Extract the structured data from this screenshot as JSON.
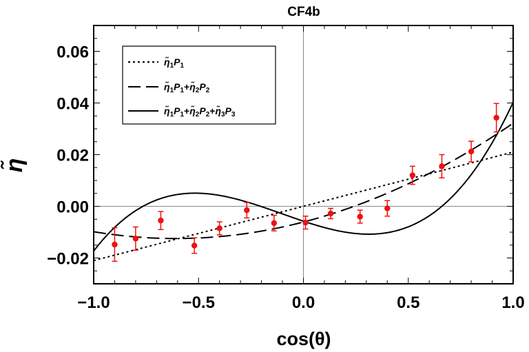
{
  "chart_data": {
    "type": "scatter",
    "title": "CF4b",
    "xlabel": "cos(θ)",
    "ylabel": "η̃",
    "xlim": [
      -1.0,
      1.0
    ],
    "ylim": [
      -0.03,
      0.07
    ],
    "xticks": [
      -1.0,
      -0.5,
      0.0,
      0.5,
      1.0
    ],
    "xtick_labels": [
      "−1.0",
      "−0.5",
      "0.0",
      "0.5",
      "1.0"
    ],
    "yticks": [
      -0.02,
      0.0,
      0.02,
      0.04,
      0.06
    ],
    "ytick_labels": [
      "−0.02",
      "0.00",
      "0.02",
      "0.04",
      "0.06"
    ],
    "points": {
      "name": "data",
      "color": "#ee1111",
      "x": [
        -0.9,
        -0.8,
        -0.68,
        -0.52,
        -0.4,
        -0.27,
        -0.14,
        0.01,
        0.13,
        0.27,
        0.4,
        0.52,
        0.66,
        0.8,
        0.92
      ],
      "y": [
        -0.0148,
        -0.0125,
        -0.0055,
        -0.0152,
        -0.0085,
        -0.0015,
        -0.0065,
        -0.0063,
        -0.0028,
        -0.004,
        -0.0008,
        0.012,
        0.0155,
        0.0212,
        0.0343
      ],
      "err": [
        0.0065,
        0.0045,
        0.0035,
        0.003,
        0.0025,
        0.003,
        0.003,
        0.0025,
        0.002,
        0.0025,
        0.003,
        0.0035,
        0.0045,
        0.004,
        0.0055
      ]
    },
    "series": [
      {
        "name": "η̃₁P₁",
        "style": "dotted",
        "coeffs": [
          0.0,
          0.021,
          0.0,
          0.0
        ]
      },
      {
        "name": "η̃₁P₁+η̃₂P₂",
        "style": "dashed",
        "coeffs": [
          -0.00033,
          0.021,
          0.0115,
          0.0
        ]
      },
      {
        "name": "η̃₁P₁+η̃₂P₂+η̃₃P₃",
        "style": "solid",
        "coeffs": [
          0.0,
          0.0065,
          0.0115,
          0.0223
        ]
      }
    ],
    "legend": {
      "position": "top-left",
      "entries": [
        {
          "base1": "η̃",
          "sub1": "1",
          "base2": "P",
          "sub2": "1"
        },
        {
          "base1": "η̃",
          "sub1": "1",
          "base2": "P",
          "sub2": "1",
          "base3": "η̃",
          "sub3": "2",
          "base4": "P",
          "sub4": "2"
        },
        {
          "base1": "η̃",
          "sub1": "1",
          "base2": "P",
          "sub2": "1",
          "base3": "η̃",
          "sub3": "2",
          "base4": "P",
          "sub4": "2",
          "base5": "η̃",
          "sub5": "3",
          "base6": "P",
          "sub6": "3"
        }
      ]
    },
    "grid": false,
    "crosshair_at_zero": true
  }
}
